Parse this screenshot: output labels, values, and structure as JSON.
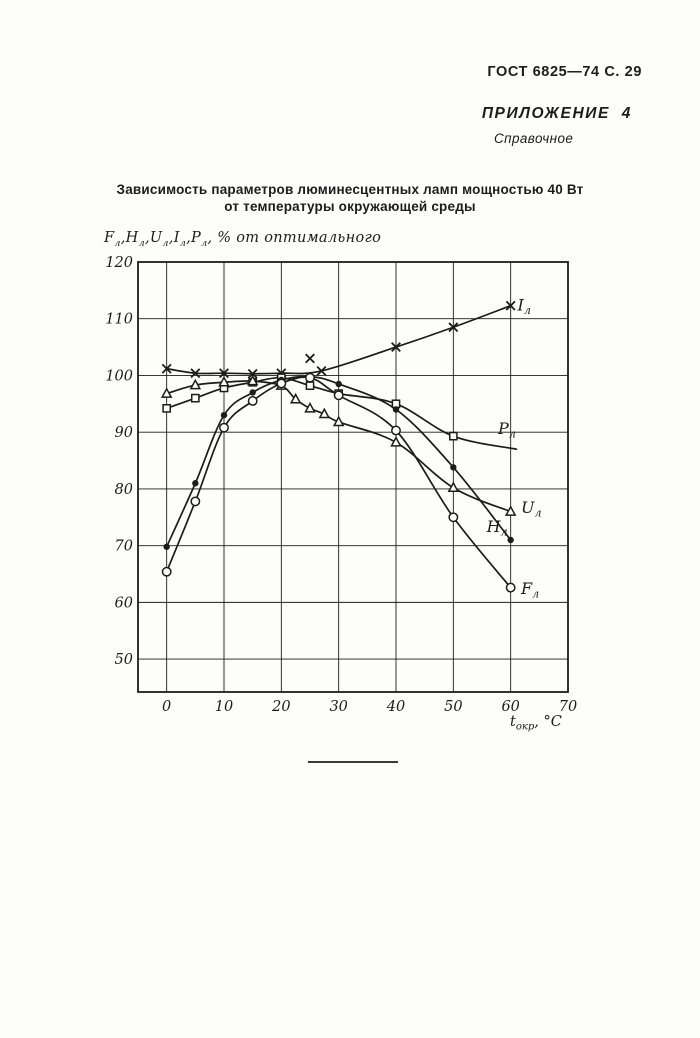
{
  "page": {
    "paper_color": "#fdfdfc",
    "ink_color": "#1c1c1c"
  },
  "header": {
    "gost": "ГОСТ 6825—74 С. 29",
    "appendix": "ПРИЛОЖЕНИЕ  4",
    "appendix_note": "Справочное"
  },
  "title": {
    "line1": "Зависимость параметров люминесцентных ламп мощностью 40 Вт",
    "line2": "от температуры окружающей среды"
  },
  "chart_data": {
    "type": "line",
    "title": "Зависимость параметров люминесцентных ламп мощностью 40 Вт от температуры окружающей среды",
    "y_axis_label": {
      "vars": [
        [
          "F",
          "л"
        ],
        [
          "H",
          "л"
        ],
        [
          "U",
          "л"
        ],
        [
          "I",
          "л"
        ],
        [
          "P",
          "л"
        ]
      ],
      "suffix": " % от оптимального"
    },
    "x_axis_label": {
      "main": "t",
      "sub": "окр",
      "suffix": ", °C"
    },
    "x_ticks": [
      0,
      10,
      20,
      30,
      40,
      50,
      60,
      70
    ],
    "y_ticks": [
      50,
      60,
      70,
      80,
      90,
      100,
      110,
      120
    ],
    "x_range": [
      -5,
      70
    ],
    "y_range": [
      44.2,
      120
    ],
    "grid": true,
    "legend_position": "inline-curve-labels",
    "series": [
      {
        "name": "I_lamp_current",
        "label": {
          "main": "I",
          "sub": "л"
        },
        "marker": "cross",
        "x": [
          0,
          5,
          10,
          15,
          20,
          27,
          40,
          50,
          60
        ],
        "y": [
          101.2,
          100.4,
          100.4,
          100.3,
          100.4,
          100.8,
          105,
          108.5,
          112.3
        ],
        "extra_markers": [
          {
            "x": 25,
            "y": 103
          }
        ],
        "label_pos": {
          "x": 61.2,
          "y": 112.3
        }
      },
      {
        "name": "P_lamp_power",
        "label": {
          "main": "P",
          "sub": "л"
        },
        "marker": "square-open",
        "x": [
          0,
          5,
          10,
          15,
          20,
          25,
          30,
          40,
          50
        ],
        "y": [
          94.2,
          96,
          97.8,
          98.8,
          99.6,
          98.2,
          96.8,
          95,
          89.3
        ],
        "line_extra": [
          {
            "x": 61,
            "y": 87
          }
        ],
        "label_pos": {
          "x": 57.8,
          "y": 90.6
        }
      },
      {
        "name": "U_lamp_voltage",
        "label": {
          "main": "U",
          "sub": "л"
        },
        "marker": "triangle-open",
        "x": [
          0,
          5,
          10,
          15,
          20,
          22.5,
          25,
          27.5,
          30,
          40,
          50,
          60
        ],
        "y": [
          96.8,
          98.3,
          98.8,
          99,
          98.2,
          95.8,
          94.2,
          93.2,
          91.8,
          88.2,
          80.2,
          76
        ],
        "label_pos": {
          "x": 61.8,
          "y": 76.6
        }
      },
      {
        "name": "H_lamp_brightness",
        "label": {
          "main": "H",
          "sub": "л"
        },
        "marker": "circle-filled",
        "x": [
          0,
          5,
          10,
          15,
          20,
          25,
          30,
          40,
          50,
          60
        ],
        "y": [
          69.8,
          81,
          93,
          97,
          99.2,
          99.8,
          98.5,
          94,
          83.8,
          71
        ],
        "label_pos": {
          "x": 55.8,
          "y": 73.3
        }
      },
      {
        "name": "F_lamp_flux",
        "label": {
          "main": "F",
          "sub": "л"
        },
        "marker": "circle-open",
        "x": [
          0,
          5,
          10,
          15,
          20,
          25,
          30,
          40,
          50,
          60
        ],
        "y": [
          65.4,
          77.8,
          90.8,
          95.5,
          98.6,
          99.6,
          96.5,
          90.3,
          75,
          62.6
        ],
        "label_pos": {
          "x": 61.8,
          "y": 62.4
        }
      }
    ]
  }
}
